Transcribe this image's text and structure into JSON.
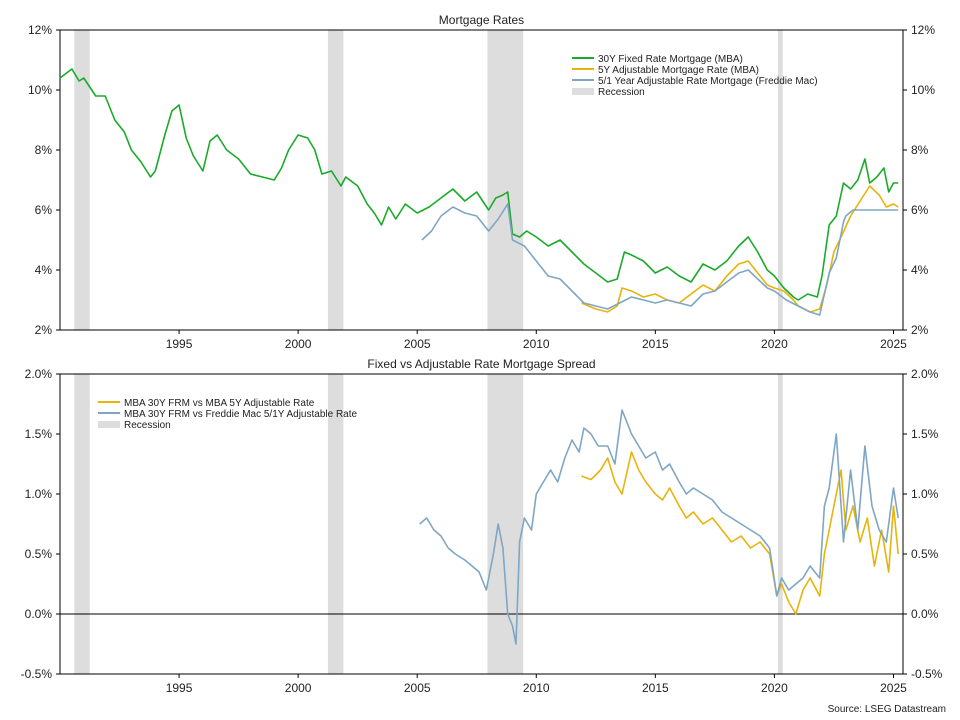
{
  "source": "Source: LSEG Datastream",
  "chart_data": [
    {
      "type": "line",
      "title": "Mortgage Rates",
      "ylim": [
        2,
        12
      ],
      "y_ticks": [
        "2%",
        "4%",
        "6%",
        "8%",
        "10%",
        "12%"
      ],
      "x_ticks": [
        "1995",
        "2000",
        "2005",
        "2010",
        "2015",
        "2020",
        "2025"
      ],
      "xlim": [
        1990.0,
        2025.4
      ],
      "grid": false,
      "legend_placement": "top-right",
      "legend": [
        {
          "label": "30Y Fixed Rate Mortgage (MBA)",
          "color": "#1aaa2a"
        },
        {
          "label": "5Y Adjustable Mortgage Rate (MBA)",
          "color": "#e8b30c"
        },
        {
          "label": "5/1 Year Adjustable Rate Mortgage (Freddie Mac)",
          "color": "#7fa6c4"
        },
        {
          "label": "Recession",
          "color": "#dddddd"
        }
      ],
      "recessions": [
        [
          1990.6,
          1991.25
        ],
        [
          2001.25,
          2001.9
        ],
        [
          2007.95,
          2009.45
        ],
        [
          2020.15,
          2020.35
        ]
      ],
      "series": [
        {
          "name": "30Y Fixed Rate Mortgage (MBA)",
          "color": "#1aaa2a",
          "x": [
            1990.0,
            1990.5,
            1990.8,
            1991.0,
            1991.5,
            1991.9,
            1992.3,
            1992.7,
            1993.0,
            1993.4,
            1993.8,
            1994.0,
            1994.4,
            1994.7,
            1995.0,
            1995.3,
            1995.6,
            1996.0,
            1996.3,
            1996.6,
            1997.0,
            1997.5,
            1998.0,
            1998.5,
            1999.0,
            1999.3,
            1999.6,
            2000.0,
            2000.4,
            2000.7,
            2001.0,
            2001.4,
            2001.8,
            2002.0,
            2002.5,
            2002.9,
            2003.2,
            2003.5,
            2003.8,
            2004.1,
            2004.5,
            2005.0,
            2005.5,
            2006.0,
            2006.5,
            2007.0,
            2007.5,
            2008.0,
            2008.3,
            2008.6,
            2008.8,
            2009.0,
            2009.3,
            2009.6,
            2010.0,
            2010.5,
            2011.0,
            2011.5,
            2012.0,
            2012.5,
            2013.0,
            2013.4,
            2013.7,
            2014.0,
            2014.5,
            2015.0,
            2015.5,
            2016.0,
            2016.5,
            2017.0,
            2017.5,
            2018.0,
            2018.5,
            2018.9,
            2019.3,
            2019.7,
            2020.0,
            2020.4,
            2020.8,
            2021.0,
            2021.4,
            2021.8,
            2022.0,
            2022.3,
            2022.6,
            2022.9,
            2023.2,
            2023.5,
            2023.8,
            2024.0,
            2024.3,
            2024.6,
            2024.8,
            2025.0,
            2025.2
          ],
          "y": [
            10.4,
            10.7,
            10.3,
            10.4,
            9.8,
            9.8,
            9.0,
            8.6,
            8.0,
            7.6,
            7.1,
            7.3,
            8.5,
            9.3,
            9.5,
            8.4,
            7.8,
            7.3,
            8.3,
            8.5,
            8.0,
            7.7,
            7.2,
            7.1,
            7.0,
            7.4,
            8.0,
            8.5,
            8.4,
            8.0,
            7.2,
            7.3,
            6.8,
            7.1,
            6.8,
            6.2,
            5.9,
            5.5,
            6.1,
            5.7,
            6.2,
            5.9,
            6.1,
            6.4,
            6.7,
            6.3,
            6.6,
            6.0,
            6.4,
            6.5,
            6.6,
            5.2,
            5.1,
            5.3,
            5.1,
            4.8,
            5.0,
            4.6,
            4.2,
            3.9,
            3.6,
            3.7,
            4.6,
            4.5,
            4.3,
            3.9,
            4.1,
            3.8,
            3.6,
            4.2,
            4.0,
            4.3,
            4.8,
            5.1,
            4.6,
            4.0,
            3.8,
            3.4,
            3.1,
            3.0,
            3.2,
            3.1,
            3.8,
            5.5,
            5.8,
            6.9,
            6.7,
            7.0,
            7.7,
            6.9,
            7.1,
            7.4,
            6.6,
            6.9,
            6.9
          ]
        },
        {
          "name": "5Y Adjustable Mortgage Rate (MBA)",
          "color": "#e8b30c",
          "x": [
            2011.9,
            2012.5,
            2013.0,
            2013.4,
            2013.6,
            2014.0,
            2014.5,
            2015.0,
            2015.5,
            2016.0,
            2016.5,
            2017.0,
            2017.5,
            2018.0,
            2018.5,
            2018.9,
            2019.3,
            2019.7,
            2020.0,
            2020.4,
            2020.8,
            2021.0,
            2021.5,
            2021.9,
            2022.2,
            2022.5,
            2022.8,
            2023.2,
            2023.6,
            2024.0,
            2024.4,
            2024.7,
            2025.0,
            2025.2
          ],
          "y": [
            2.9,
            2.7,
            2.6,
            2.8,
            3.4,
            3.3,
            3.1,
            3.2,
            3.0,
            2.9,
            3.2,
            3.5,
            3.3,
            3.8,
            4.2,
            4.3,
            3.9,
            3.5,
            3.4,
            3.3,
            3.0,
            2.8,
            2.6,
            2.7,
            3.5,
            4.6,
            5.1,
            5.8,
            6.3,
            6.8,
            6.5,
            6.1,
            6.2,
            6.1
          ]
        },
        {
          "name": "5/1 Year Adjustable Rate Mortgage (Freddie Mac)",
          "color": "#7fa6c4",
          "x": [
            2005.2,
            2005.6,
            2006.0,
            2006.5,
            2007.0,
            2007.5,
            2008.0,
            2008.4,
            2008.8,
            2009.0,
            2009.5,
            2010.0,
            2010.5,
            2011.0,
            2011.5,
            2012.0,
            2012.5,
            2013.0,
            2013.5,
            2014.0,
            2014.5,
            2015.0,
            2015.5,
            2016.0,
            2016.5,
            2017.0,
            2017.5,
            2018.0,
            2018.5,
            2018.9,
            2019.3,
            2019.7,
            2020.0,
            2020.5,
            2021.0,
            2021.5,
            2021.9,
            2022.3,
            2022.6,
            2022.9,
            2023.0,
            2023.3,
            2024.0,
            2025.2
          ],
          "y": [
            5.0,
            5.3,
            5.8,
            6.1,
            5.9,
            5.8,
            5.3,
            5.7,
            6.2,
            5.0,
            4.8,
            4.3,
            3.8,
            3.7,
            3.3,
            2.9,
            2.8,
            2.7,
            2.9,
            3.1,
            3.0,
            2.9,
            3.0,
            2.9,
            2.8,
            3.2,
            3.3,
            3.6,
            3.9,
            4.0,
            3.7,
            3.4,
            3.3,
            3.0,
            2.8,
            2.6,
            2.5,
            3.9,
            4.4,
            5.6,
            5.8,
            6.0,
            6.0,
            6.0
          ]
        }
      ]
    },
    {
      "type": "line",
      "title": "Fixed vs Adjustable Rate Mortgage Spread",
      "ylim": [
        -0.5,
        2.0
      ],
      "y_ticks": [
        "-0.5%",
        "0.0%",
        "0.5%",
        "1.0%",
        "1.5%",
        "2.0%"
      ],
      "x_ticks": [
        "1995",
        "2000",
        "2005",
        "2010",
        "2015",
        "2020",
        "2025"
      ],
      "xlim": [
        1990.0,
        2025.4
      ],
      "grid": false,
      "legend_placement": "top-left",
      "legend": [
        {
          "label": "MBA 30Y FRM vs MBA 5Y Adjustable Rate",
          "color": "#e8b30c"
        },
        {
          "label": "MBA 30Y FRM vs Freddie Mac 5/1Y Adjustable Rate",
          "color": "#7fa6c4"
        },
        {
          "label": "Recession",
          "color": "#dddddd"
        }
      ],
      "recessions": [
        [
          1990.6,
          1991.25
        ],
        [
          2001.25,
          2001.9
        ],
        [
          2007.95,
          2009.45
        ],
        [
          2020.15,
          2020.35
        ]
      ],
      "series": [
        {
          "name": "MBA 30Y FRM vs MBA 5Y Adjustable Rate",
          "color": "#e8b30c",
          "x": [
            2011.9,
            2012.3,
            2012.7,
            2013.0,
            2013.3,
            2013.6,
            2014.0,
            2014.3,
            2014.6,
            2015.0,
            2015.3,
            2015.6,
            2016.0,
            2016.3,
            2016.6,
            2017.0,
            2017.4,
            2017.8,
            2018.2,
            2018.6,
            2019.0,
            2019.4,
            2019.8,
            2020.1,
            2020.3,
            2020.6,
            2020.9,
            2021.2,
            2021.5,
            2021.9,
            2022.1,
            2022.3,
            2022.5,
            2022.8,
            2023.0,
            2023.3,
            2023.6,
            2023.9,
            2024.2,
            2024.5,
            2024.8,
            2025.0,
            2025.2
          ],
          "y": [
            1.15,
            1.12,
            1.2,
            1.3,
            1.1,
            1.0,
            1.35,
            1.2,
            1.1,
            1.0,
            0.95,
            1.05,
            0.9,
            0.8,
            0.85,
            0.75,
            0.8,
            0.7,
            0.6,
            0.65,
            0.55,
            0.6,
            0.5,
            0.15,
            0.25,
            0.1,
            0.0,
            0.2,
            0.3,
            0.15,
            0.5,
            0.7,
            0.9,
            1.2,
            0.7,
            0.9,
            0.6,
            0.8,
            0.4,
            0.7,
            0.35,
            0.9,
            0.5
          ]
        },
        {
          "name": "MBA 30Y FRM vs Freddie Mac 5/1Y Adjustable Rate",
          "color": "#7fa6c4",
          "x": [
            2005.1,
            2005.4,
            2005.7,
            2006.0,
            2006.3,
            2006.6,
            2007.0,
            2007.3,
            2007.6,
            2007.9,
            2008.2,
            2008.4,
            2008.6,
            2008.8,
            2009.0,
            2009.15,
            2009.3,
            2009.5,
            2009.8,
            2010.0,
            2010.3,
            2010.6,
            2010.9,
            2011.2,
            2011.5,
            2011.8,
            2012.0,
            2012.3,
            2012.6,
            2013.0,
            2013.3,
            2013.6,
            2013.8,
            2014.0,
            2014.3,
            2014.6,
            2015.0,
            2015.3,
            2015.6,
            2016.0,
            2016.3,
            2016.6,
            2017.0,
            2017.4,
            2017.8,
            2018.2,
            2018.6,
            2019.0,
            2019.4,
            2019.8,
            2020.1,
            2020.3,
            2020.6,
            2020.9,
            2021.2,
            2021.5,
            2021.9,
            2022.1,
            2022.3,
            2022.6,
            2022.9,
            2023.2,
            2023.5,
            2023.8,
            2024.1,
            2024.4,
            2024.7,
            2025.0,
            2025.2
          ],
          "y": [
            0.75,
            0.8,
            0.7,
            0.65,
            0.55,
            0.5,
            0.45,
            0.4,
            0.35,
            0.2,
            0.5,
            0.75,
            0.55,
            0.0,
            -0.1,
            -0.25,
            0.6,
            0.8,
            0.7,
            1.0,
            1.1,
            1.2,
            1.1,
            1.3,
            1.45,
            1.35,
            1.55,
            1.5,
            1.4,
            1.4,
            1.25,
            1.7,
            1.6,
            1.5,
            1.4,
            1.3,
            1.35,
            1.2,
            1.25,
            1.1,
            1.0,
            1.05,
            1.0,
            0.95,
            0.85,
            0.8,
            0.75,
            0.7,
            0.65,
            0.55,
            0.15,
            0.3,
            0.2,
            0.25,
            0.3,
            0.4,
            0.3,
            0.9,
            1.05,
            1.5,
            0.6,
            1.2,
            0.7,
            1.4,
            0.9,
            0.7,
            0.6,
            1.05,
            0.8
          ]
        }
      ]
    }
  ]
}
